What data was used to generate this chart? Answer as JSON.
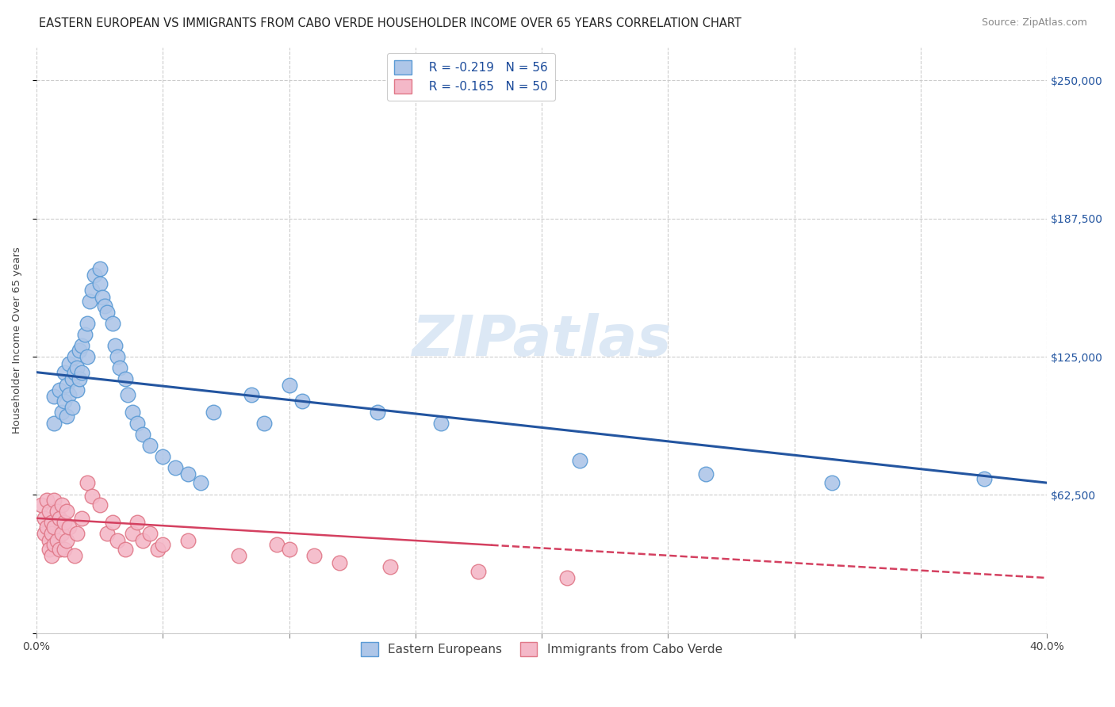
{
  "title": "EASTERN EUROPEAN VS IMMIGRANTS FROM CABO VERDE HOUSEHOLDER INCOME OVER 65 YEARS CORRELATION CHART",
  "source": "Source: ZipAtlas.com",
  "ylabel": "Householder Income Over 65 years",
  "xlim": [
    0.0,
    0.4
  ],
  "ylim": [
    0,
    265000
  ],
  "xticks": [
    0.0,
    0.05,
    0.1,
    0.15,
    0.2,
    0.25,
    0.3,
    0.35,
    0.4
  ],
  "ytick_positions": [
    0,
    62500,
    125000,
    187500,
    250000
  ],
  "ytick_labels": [
    "",
    "$62,500",
    "$125,000",
    "$187,500",
    "$250,000"
  ],
  "watermark": "ZIPatlas",
  "legend_blue_r": "R = -0.219",
  "legend_blue_n": "N = 56",
  "legend_pink_r": "R = -0.165",
  "legend_pink_n": "N = 50",
  "legend1_label": "Eastern Europeans",
  "legend2_label": "Immigrants from Cabo Verde",
  "blue_color": "#aec6e8",
  "blue_edge": "#5b9bd5",
  "pink_color": "#f4b8c8",
  "pink_edge": "#e07888",
  "line_blue": "#2355a0",
  "line_pink": "#d44060",
  "blue_x": [
    0.007,
    0.007,
    0.009,
    0.01,
    0.011,
    0.011,
    0.012,
    0.012,
    0.013,
    0.013,
    0.014,
    0.014,
    0.015,
    0.015,
    0.016,
    0.016,
    0.017,
    0.017,
    0.018,
    0.018,
    0.019,
    0.02,
    0.02,
    0.021,
    0.022,
    0.023,
    0.025,
    0.025,
    0.026,
    0.027,
    0.028,
    0.03,
    0.031,
    0.032,
    0.033,
    0.035,
    0.036,
    0.038,
    0.04,
    0.042,
    0.045,
    0.05,
    0.055,
    0.06,
    0.065,
    0.07,
    0.085,
    0.09,
    0.1,
    0.105,
    0.135,
    0.16,
    0.215,
    0.265,
    0.315,
    0.375
  ],
  "blue_y": [
    107000,
    95000,
    110000,
    100000,
    118000,
    105000,
    112000,
    98000,
    122000,
    108000,
    115000,
    102000,
    125000,
    118000,
    120000,
    110000,
    128000,
    115000,
    130000,
    118000,
    135000,
    140000,
    125000,
    150000,
    155000,
    162000,
    165000,
    158000,
    152000,
    148000,
    145000,
    140000,
    130000,
    125000,
    120000,
    115000,
    108000,
    100000,
    95000,
    90000,
    85000,
    80000,
    75000,
    72000,
    68000,
    100000,
    108000,
    95000,
    112000,
    105000,
    100000,
    95000,
    78000,
    72000,
    68000,
    70000
  ],
  "pink_x": [
    0.002,
    0.003,
    0.003,
    0.004,
    0.004,
    0.005,
    0.005,
    0.005,
    0.006,
    0.006,
    0.006,
    0.007,
    0.007,
    0.007,
    0.008,
    0.008,
    0.009,
    0.009,
    0.01,
    0.01,
    0.011,
    0.011,
    0.012,
    0.012,
    0.013,
    0.015,
    0.016,
    0.018,
    0.02,
    0.022,
    0.025,
    0.028,
    0.03,
    0.032,
    0.035,
    0.038,
    0.04,
    0.042,
    0.045,
    0.048,
    0.05,
    0.06,
    0.08,
    0.095,
    0.1,
    0.11,
    0.12,
    0.14,
    0.175,
    0.21
  ],
  "pink_y": [
    58000,
    52000,
    45000,
    60000,
    48000,
    55000,
    42000,
    38000,
    50000,
    45000,
    35000,
    60000,
    48000,
    40000,
    55000,
    42000,
    52000,
    38000,
    58000,
    45000,
    50000,
    38000,
    55000,
    42000,
    48000,
    35000,
    45000,
    52000,
    68000,
    62000,
    58000,
    45000,
    50000,
    42000,
    38000,
    45000,
    50000,
    42000,
    45000,
    38000,
    40000,
    42000,
    35000,
    40000,
    38000,
    35000,
    32000,
    30000,
    28000,
    25000
  ],
  "grid_color": "#cccccc",
  "bg_color": "#ffffff",
  "title_fontsize": 10.5,
  "axis_label_fontsize": 9.5,
  "tick_fontsize": 10,
  "legend_fontsize": 11,
  "watermark_fontsize": 52,
  "watermark_color": "#dce8f5",
  "source_fontsize": 9
}
